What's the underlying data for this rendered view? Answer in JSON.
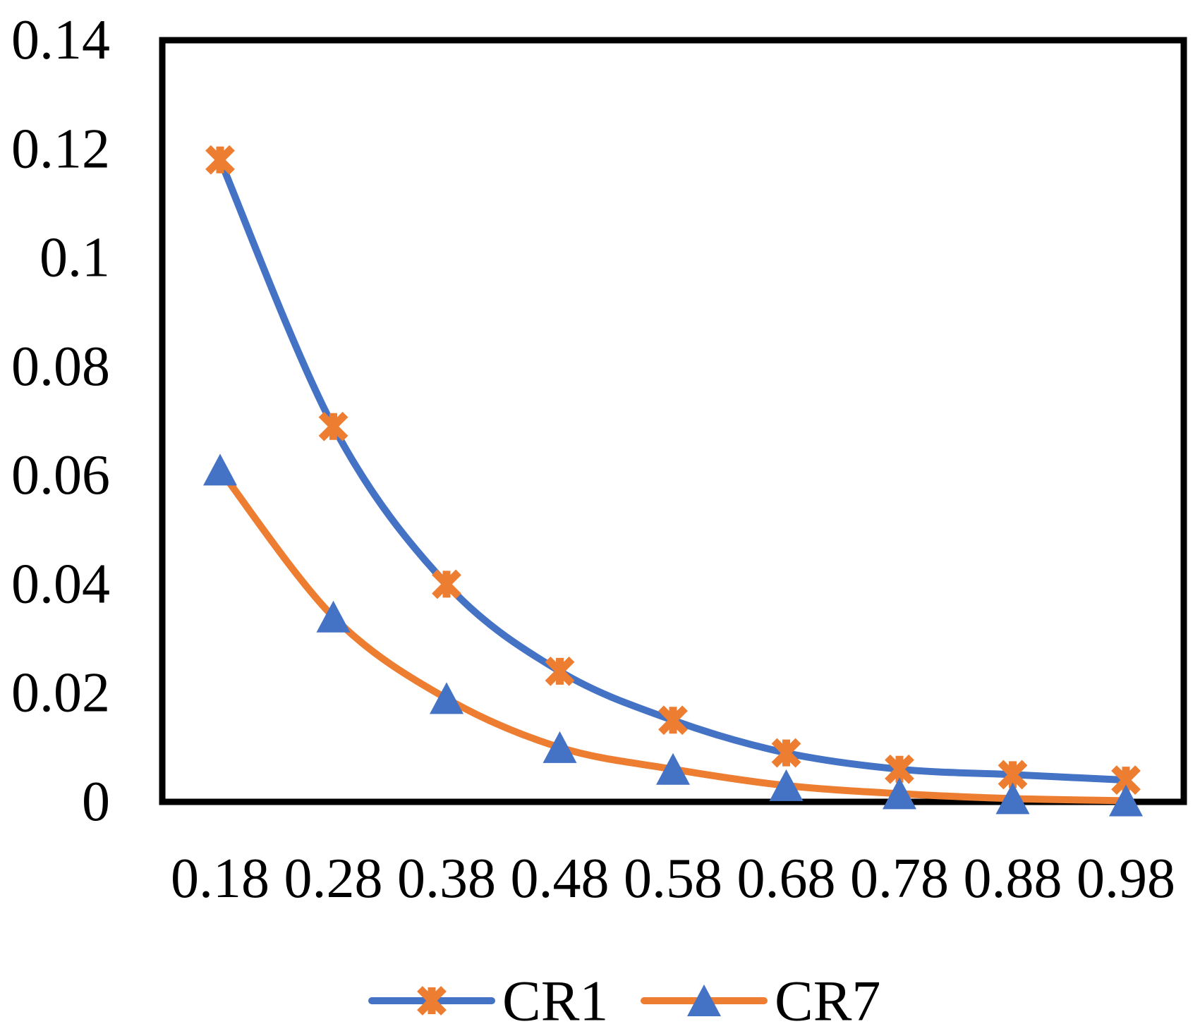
{
  "chart_data": {
    "type": "line",
    "title": "",
    "xlabel": "",
    "ylabel": "",
    "categories": [
      0.18,
      0.28,
      0.38,
      0.48,
      0.58,
      0.68,
      0.78,
      0.88,
      0.98
    ],
    "x_tick_labels": [
      "0.18",
      "0.28",
      "0.38",
      "0.48",
      "0.58",
      "0.68",
      "0.78",
      "0.88",
      "0.98"
    ],
    "series": [
      {
        "name": "CR1",
        "line_color": "#4472C4",
        "marker": "asterisk-icon",
        "marker_color": "#ED7D31",
        "values": [
          0.118,
          0.069,
          0.04,
          0.024,
          0.015,
          0.009,
          0.006,
          0.005,
          0.004
        ]
      },
      {
        "name": "CR7",
        "line_color": "#ED7D31",
        "marker": "triangle-icon",
        "marker_color": "#4472C4",
        "values": [
          0.061,
          0.034,
          0.019,
          0.01,
          0.006,
          0.003,
          0.0015,
          0.0006,
          0.0002
        ]
      }
    ],
    "ylim": [
      0,
      0.14
    ],
    "y_ticks": [
      0,
      0.02,
      0.04,
      0.06,
      0.08,
      0.1,
      0.12,
      0.14
    ],
    "y_tick_labels": [
      "0",
      "0.02",
      "0.04",
      "0.06",
      "0.08",
      "0.1",
      "0.12",
      "0.14"
    ],
    "grid": false,
    "smooth_lines": true,
    "legend_position": "bottom-center",
    "plot_border_color": "#000000",
    "text_color": "#000000",
    "background_color": "#FFFFFF"
  }
}
